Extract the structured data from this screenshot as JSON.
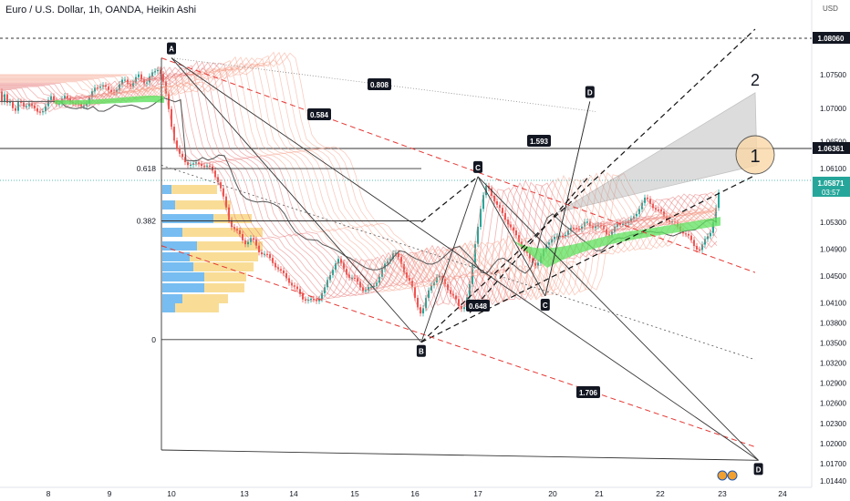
{
  "header": {
    "symbol_title": "Euro / U.S. Dollar, 1h, OANDA, Heikin Ashi"
  },
  "axis": {
    "currency": "USD"
  },
  "chart_data": {
    "type": "candlestick",
    "title": "Euro / U.S. Dollar, 1h, OANDA, Heikin Ashi",
    "y_unit": "USD",
    "ylim": [
      1.0144,
      1.083
    ],
    "y_ticks": [
      "1.07500",
      "1.07000",
      "1.06500",
      "1.06100",
      "1.05300",
      "1.04900",
      "1.04500",
      "1.04100",
      "1.03800",
      "1.03500",
      "1.03200",
      "1.02900",
      "1.02600",
      "1.02300",
      "1.02000",
      "1.01700",
      "1.01440"
    ],
    "x_ticks": [
      "8",
      "9",
      "10",
      "13",
      "14",
      "15",
      "16",
      "17",
      "20",
      "21",
      "22",
      "23",
      "24"
    ],
    "price_labels": [
      {
        "value": "1.08060",
        "style": "dark"
      },
      {
        "value": "1.06361",
        "style": "dark"
      },
      {
        "value": "1.05871",
        "countdown": "03:57",
        "style": "green"
      }
    ],
    "fib_levels": [
      {
        "label": "0.618",
        "value": 1.061
      },
      {
        "label": "0.382",
        "value": 1.0532
      },
      {
        "label": "0",
        "value": 1.0355
      }
    ],
    "pattern_points": [
      {
        "label": "A",
        "x_day": 10.0,
        "price": 1.0775
      },
      {
        "label": "B",
        "x_day": 16.1,
        "price": 1.0351
      },
      {
        "label": "C",
        "x_day": 17.0,
        "price": 1.0598
      },
      {
        "label": "C",
        "x_day": 19.7,
        "price": 1.042
      },
      {
        "label": "D",
        "x_day": 20.8,
        "price": 1.071
      },
      {
        "label": "D",
        "x_day": 23.6,
        "price": 1.0175
      }
    ],
    "ratios": [
      "0.808",
      "0.584",
      "1.593",
      "0.648",
      "1.706"
    ],
    "annotations": [
      "1",
      "2"
    ]
  }
}
